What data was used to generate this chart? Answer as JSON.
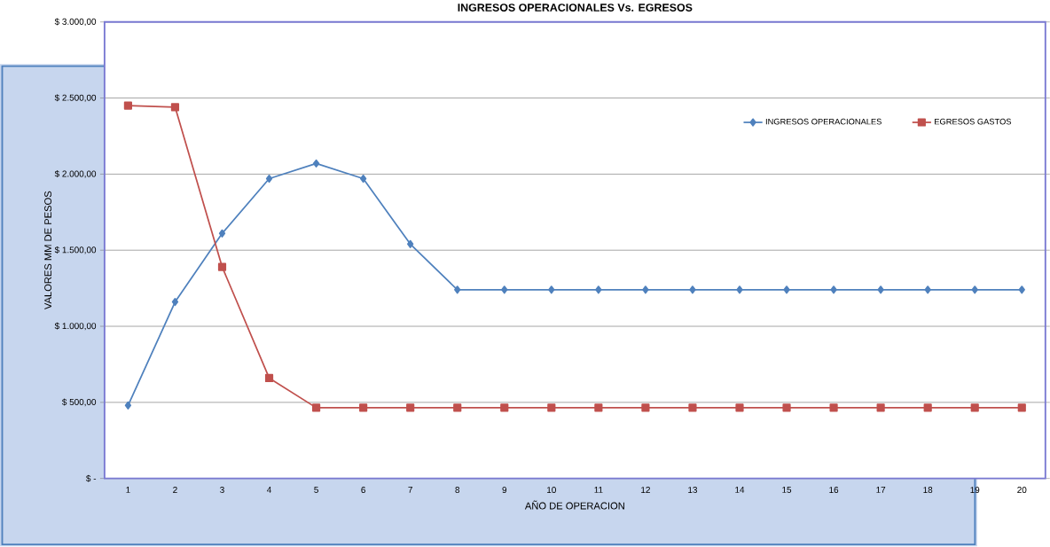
{
  "chart_data": {
    "type": "line",
    "title": "INGRESOS OPERACIONALES Vs. EGRESOS",
    "xlabel": "AÑO DE OPERACION",
    "ylabel": "VALORES MM DE PESOS",
    "categories": [
      "1",
      "2",
      "3",
      "4",
      "5",
      "6",
      "7",
      "8",
      "9",
      "10",
      "11",
      "12",
      "13",
      "14",
      "15",
      "16",
      "17",
      "18",
      "19",
      "20"
    ],
    "series": [
      {
        "name": "INGRESOS OPERACIONALES",
        "color": "#4f81bd",
        "marker": "diamond",
        "values": [
          480,
          1160,
          1610,
          1970,
          2070,
          1970,
          1540,
          1240,
          1240,
          1240,
          1240,
          1240,
          1240,
          1240,
          1240,
          1240,
          1240,
          1240,
          1240,
          1240
        ]
      },
      {
        "name": "EGRESOS GASTOS",
        "color": "#c0504d",
        "marker": "square",
        "values": [
          2450,
          2440,
          1390,
          660,
          465,
          465,
          465,
          465,
          465,
          465,
          465,
          465,
          465,
          465,
          465,
          465,
          465,
          465,
          465,
          465
        ]
      }
    ],
    "ylim": [
      0,
      3000
    ],
    "yticks": [
      {
        "value": 0,
        "label": "$ -"
      },
      {
        "value": 500,
        "label": "$ 500,00"
      },
      {
        "value": 1000,
        "label": "$ 1.000,00"
      },
      {
        "value": 1500,
        "label": "$ 1.500,00"
      },
      {
        "value": 2000,
        "label": "$ 2.000,00"
      },
      {
        "value": 2500,
        "label": "$ 2.500,00"
      },
      {
        "value": 3000,
        "label": "$ 3.000,00"
      }
    ],
    "grid": "y",
    "legend": "top right",
    "line_style": "solid"
  }
}
